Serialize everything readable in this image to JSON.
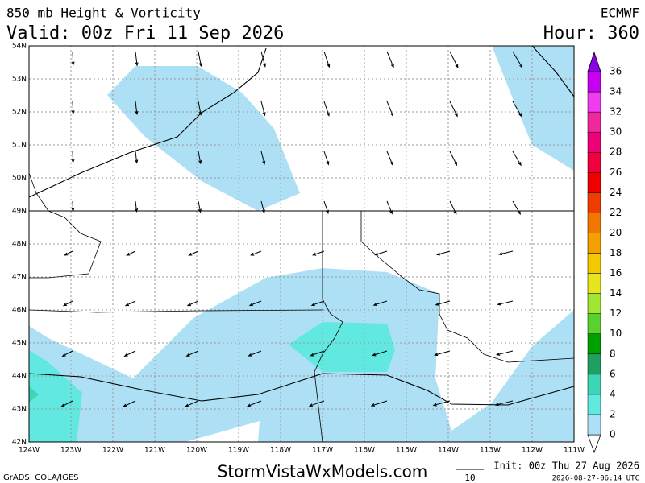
{
  "header": {
    "title": "850 mb Height & Vorticity",
    "valid": "Valid: 00z Fri 11 Sep 2026",
    "model": "ECMWF",
    "hour": "Hour: 360"
  },
  "map": {
    "lat_labels": [
      "54N",
      "53N",
      "52N",
      "51N",
      "50N",
      "49N",
      "48N",
      "47N",
      "46N",
      "45N",
      "44N",
      "43N",
      "42N"
    ],
    "lon_labels": [
      "124W",
      "123W",
      "122W",
      "121W",
      "120W",
      "119W",
      "118W",
      "117W",
      "116W",
      "115W",
      "114W",
      "113W",
      "112W",
      "111W"
    ]
  },
  "colorbar": {
    "levels": [
      0,
      2,
      4,
      6,
      8,
      10,
      12,
      14,
      16,
      18,
      20,
      22,
      24,
      26,
      28,
      30,
      32,
      34,
      36
    ],
    "colors": [
      "#ade0f5",
      "#61e8e0",
      "#3cd6b4",
      "#1fa060",
      "#00a000",
      "#5ad22d",
      "#a0e632",
      "#e6e61e",
      "#f5c800",
      "#f5a000",
      "#f07800",
      "#f03c00",
      "#f00000",
      "#f0003c",
      "#f00078",
      "#f028a0",
      "#f03cf0",
      "#c800f0",
      "#8c00e6"
    ]
  },
  "footer": {
    "grads": "GrADS: COLA/IGES",
    "site": "StormVistaWxModels.com",
    "vector_scale": "10",
    "init": "Init: 00z Thu 27 Aug 2026",
    "timestamp": "2026-08-27-06:14 UTC"
  }
}
